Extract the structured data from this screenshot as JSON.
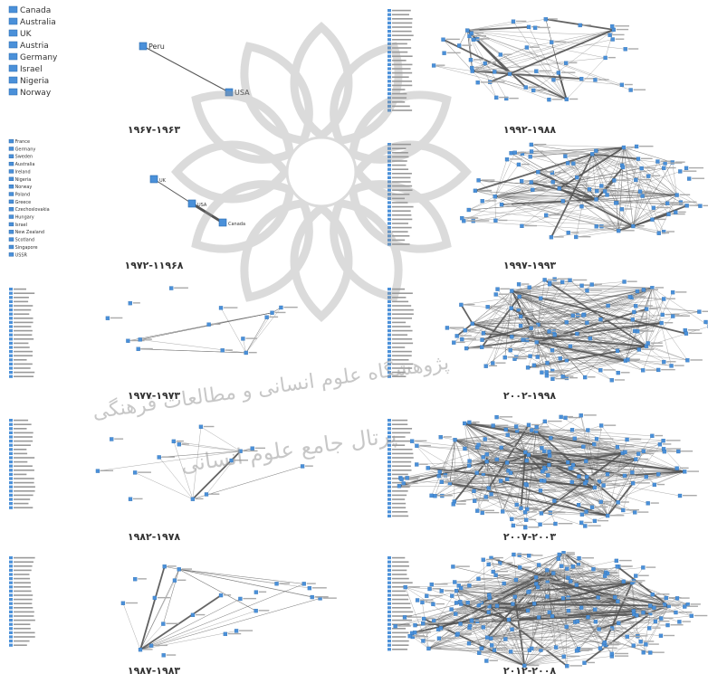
{
  "watermark": {
    "line1": "پژوهشگاه علوم انسانی و مطالعات فرهنگی",
    "line2": "پرتال جامع علوم انسانی"
  },
  "panels": [
    {
      "id": "p1",
      "caption": "۱۹۶۷-۱۹۶۳",
      "legend": [
        "Canada",
        "Australia",
        "UK",
        "Austria",
        "Germany",
        "Israel",
        "Nigeria",
        "Norway"
      ],
      "nodes": [
        {
          "id": "Peru",
          "label": "Peru"
        },
        {
          "id": "USA",
          "label": "USA"
        }
      ],
      "edges": [
        [
          "Peru",
          "USA",
          1
        ]
      ]
    },
    {
      "id": "p2",
      "caption": "۱۹۷۲-۱۱۹۶۸",
      "legend": [
        "France",
        "Germany",
        "Sweden",
        "Australia",
        "Ireland",
        "Nigeria",
        "Norway",
        "Poland",
        "Greece",
        "Czechoslovakia",
        "Hungary",
        "Israel",
        "New Zealand",
        "Scotland",
        "Singapore",
        "USSR"
      ],
      "nodes": [
        {
          "id": "UK",
          "label": "UK"
        },
        {
          "id": "USA",
          "label": "USA"
        },
        {
          "id": "Canada",
          "label": "Canada"
        }
      ],
      "edges": [
        [
          "UK",
          "USA",
          1
        ],
        [
          "USA",
          "Canada",
          3
        ]
      ]
    },
    {
      "id": "p3",
      "caption": "۱۹۷۷-۱۹۷۳"
    },
    {
      "id": "p4",
      "caption": "۱۹۸۲-۱۹۷۸"
    },
    {
      "id": "p5",
      "caption": "۱۹۸۷-۱۹۸۳"
    },
    {
      "id": "p6",
      "caption": "۱۹۹۲-۱۹۸۸"
    },
    {
      "id": "p7",
      "caption": "۱۹۹۷-۱۹۹۳"
    },
    {
      "id": "p8",
      "caption": "۲۰۰۲-۱۹۹۸"
    },
    {
      "id": "p9",
      "caption": "۲۰۰۷-۲۰۰۳"
    },
    {
      "id": "p10",
      "caption": "۲۰۱۲-۲۰۰۸"
    }
  ],
  "colors": {
    "node": "#4a90d9",
    "node_stroke": "#2a6aad",
    "edge": "#555555",
    "watermark": "#9a9a9a"
  }
}
